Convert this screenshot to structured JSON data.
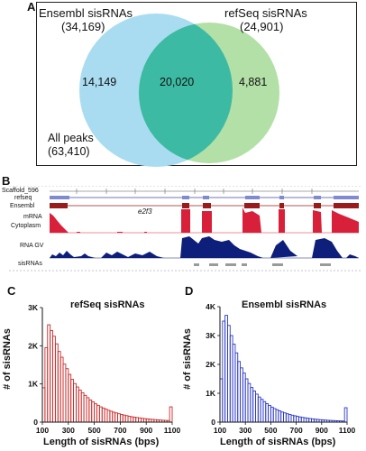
{
  "panels": {
    "a": "A",
    "b": "B",
    "c": "C",
    "d": "D"
  },
  "venn": {
    "left_name": "Ensembl sisRNAs",
    "left_count": "(34,169)",
    "right_name": "refSeq sisRNAs",
    "right_count": "(24,901)",
    "left_only": "14,149",
    "overlap": "20,020",
    "right_only": "4,881",
    "all_label": "All peaks",
    "all_count": "(63,410)",
    "colors": {
      "left": "#a9dcf1",
      "right": "#b2e0a6",
      "overlap": "#3dbaa3"
    }
  },
  "genome": {
    "scaffold_label": "Scaffold_596",
    "track_labels": [
      "refseq",
      "Ensembl",
      "mRNA",
      "Cytoplasm",
      "RNA GV",
      "sisRNAs"
    ],
    "gene_label": "e2f3",
    "colors": {
      "mrna": "#d8203a",
      "rnagv": "#0d1f7a",
      "gene": "#9a1b1b"
    }
  },
  "chart_data": [
    {
      "type": "bar",
      "title": "refSeq sisRNAs",
      "xlabel": "Length of sisRNAs (bps)",
      "ylabel": "# of sisRNAs",
      "xticks": [
        "100",
        "300",
        "500",
        "700",
        "900",
        "1100"
      ],
      "yticks": [
        "0",
        "1K",
        "2K",
        "3K"
      ],
      "xlim": [
        100,
        1100
      ],
      "ylim": [
        0,
        3000
      ],
      "bin_width": 20,
      "bin_starts": [
        100,
        120,
        140,
        160,
        180,
        200,
        220,
        240,
        260,
        280,
        300,
        320,
        340,
        360,
        380,
        400,
        420,
        440,
        460,
        480,
        500,
        520,
        540,
        560,
        580,
        600,
        620,
        640,
        660,
        680,
        700,
        720,
        740,
        760,
        780,
        800,
        820,
        840,
        860,
        880,
        900,
        920,
        940,
        960,
        980,
        1000,
        1020,
        1040,
        1060,
        1080
      ],
      "values": [
        900,
        1950,
        2550,
        2400,
        2250,
        2050,
        1850,
        1700,
        1520,
        1400,
        1250,
        1120,
        1010,
        920,
        840,
        770,
        700,
        640,
        580,
        530,
        480,
        440,
        400,
        370,
        340,
        310,
        285,
        260,
        240,
        220,
        200,
        185,
        170,
        155,
        140,
        130,
        120,
        110,
        100,
        92,
        85,
        78,
        72,
        66,
        60,
        55,
        50,
        46,
        42,
        400
      ],
      "color": "#c92a2a"
    },
    {
      "type": "bar",
      "title": "Ensembl sisRNAs",
      "xlabel": "Length of sisRNAs (bps)",
      "ylabel": "# of sisRNAs",
      "xticks": [
        "100",
        "300",
        "500",
        "700",
        "900",
        "1100"
      ],
      "yticks": [
        "0",
        "1K",
        "2K",
        "3K",
        "4K"
      ],
      "xlim": [
        100,
        1100
      ],
      "ylim": [
        0,
        4000
      ],
      "bin_width": 20,
      "bin_starts": [
        100,
        120,
        140,
        160,
        180,
        200,
        220,
        240,
        260,
        280,
        300,
        320,
        340,
        360,
        380,
        400,
        420,
        440,
        460,
        480,
        500,
        520,
        540,
        560,
        580,
        600,
        620,
        640,
        660,
        680,
        700,
        720,
        740,
        760,
        780,
        800,
        820,
        840,
        860,
        880,
        900,
        920,
        940,
        960,
        980,
        1000,
        1020,
        1040,
        1060,
        1080
      ],
      "values": [
        1500,
        3500,
        3700,
        3350,
        3000,
        2700,
        2400,
        2100,
        1880,
        1700,
        1500,
        1340,
        1200,
        1080,
        970,
        870,
        790,
        710,
        640,
        580,
        520,
        470,
        430,
        390,
        350,
        320,
        290,
        265,
        240,
        220,
        200,
        180,
        165,
        150,
        136,
        124,
        113,
        103,
        94,
        86,
        79,
        72,
        66,
        60,
        55,
        50,
        46,
        42,
        38,
        500
      ],
      "color": "#2b39c4"
    }
  ]
}
